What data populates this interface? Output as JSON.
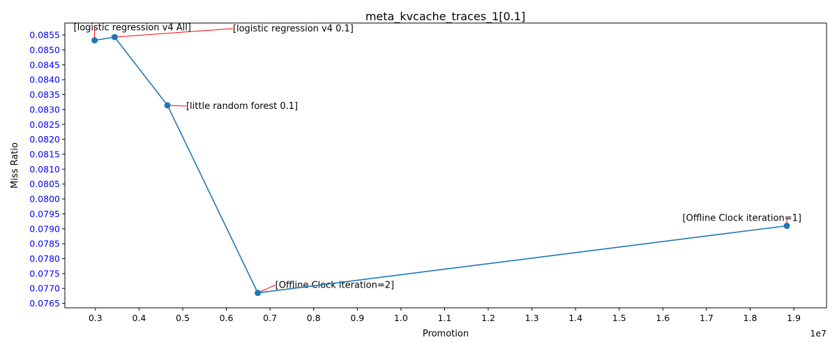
{
  "chart_data": {
    "type": "line",
    "title": "meta_kvcache_traces_1[0.1]",
    "xlabel": "Promotion",
    "ylabel": "Miss Ratio",
    "x_offset_label": "1e7",
    "xlim": [
      0.23,
      1.975
    ],
    "ylim": [
      0.07635,
      0.0859
    ],
    "x_ticks": [
      0.3,
      0.4,
      0.5,
      0.6,
      0.7,
      0.8,
      0.9,
      1.0,
      1.1,
      1.2,
      1.3,
      1.4,
      1.5,
      1.6,
      1.7,
      1.8,
      1.9
    ],
    "x_tick_labels": [
      "0.3",
      "0.4",
      "0.5",
      "0.6",
      "0.7",
      "0.8",
      "0.9",
      "1.0",
      "1.1",
      "1.2",
      "1.3",
      "1.4",
      "1.5",
      "1.6",
      "1.7",
      "1.8",
      "1.9"
    ],
    "y_ticks": [
      0.0765,
      0.077,
      0.0775,
      0.078,
      0.0785,
      0.079,
      0.0795,
      0.08,
      0.0805,
      0.081,
      0.0815,
      0.082,
      0.0825,
      0.083,
      0.0835,
      0.084,
      0.0845,
      0.085,
      0.0855
    ],
    "y_tick_labels": [
      "0.0765",
      "0.0770",
      "0.0775",
      "0.0780",
      "0.0785",
      "0.0790",
      "0.0795",
      "0.0800",
      "0.0805",
      "0.0810",
      "0.0815",
      "0.0820",
      "0.0825",
      "0.0830",
      "0.0835",
      "0.0840",
      "0.0845",
      "0.0850",
      "0.0855"
    ],
    "grid": false,
    "series": [
      {
        "x": [
          0.298,
          0.344,
          0.465,
          0.672,
          1.884
        ],
        "y": [
          0.08532,
          0.08543,
          0.08314,
          0.07685,
          0.0791
        ]
      }
    ],
    "annotations": [
      {
        "text": "[logistic regression v4 All]",
        "x": 0.298,
        "y": 0.08532,
        "text_x": 0.25,
        "text_y": 0.08565,
        "anchor": "start"
      },
      {
        "text": "[logistic regression v4 0.1]",
        "x": 0.344,
        "y": 0.08543,
        "text_x": 0.615,
        "text_y": 0.08562,
        "anchor": "start"
      },
      {
        "text": "[little random forest 0.1]",
        "x": 0.465,
        "y": 0.08314,
        "text_x": 0.508,
        "text_y": 0.08302,
        "anchor": "start"
      },
      {
        "text": "[Offline Clock iteration=2]",
        "x": 0.672,
        "y": 0.07685,
        "text_x": 0.712,
        "text_y": 0.07702,
        "anchor": "start"
      },
      {
        "text": "[Offline Clock iteration=1]",
        "x": 1.884,
        "y": 0.0791,
        "text_x": 1.645,
        "text_y": 0.07926,
        "anchor": "start"
      }
    ],
    "colors": {
      "line": "#1f77b4",
      "marker": "#1f77b4",
      "annotation_arrow": "#ff0000",
      "y_tick_labels": "#0000ff",
      "x_tick_labels": "#000000"
    }
  }
}
